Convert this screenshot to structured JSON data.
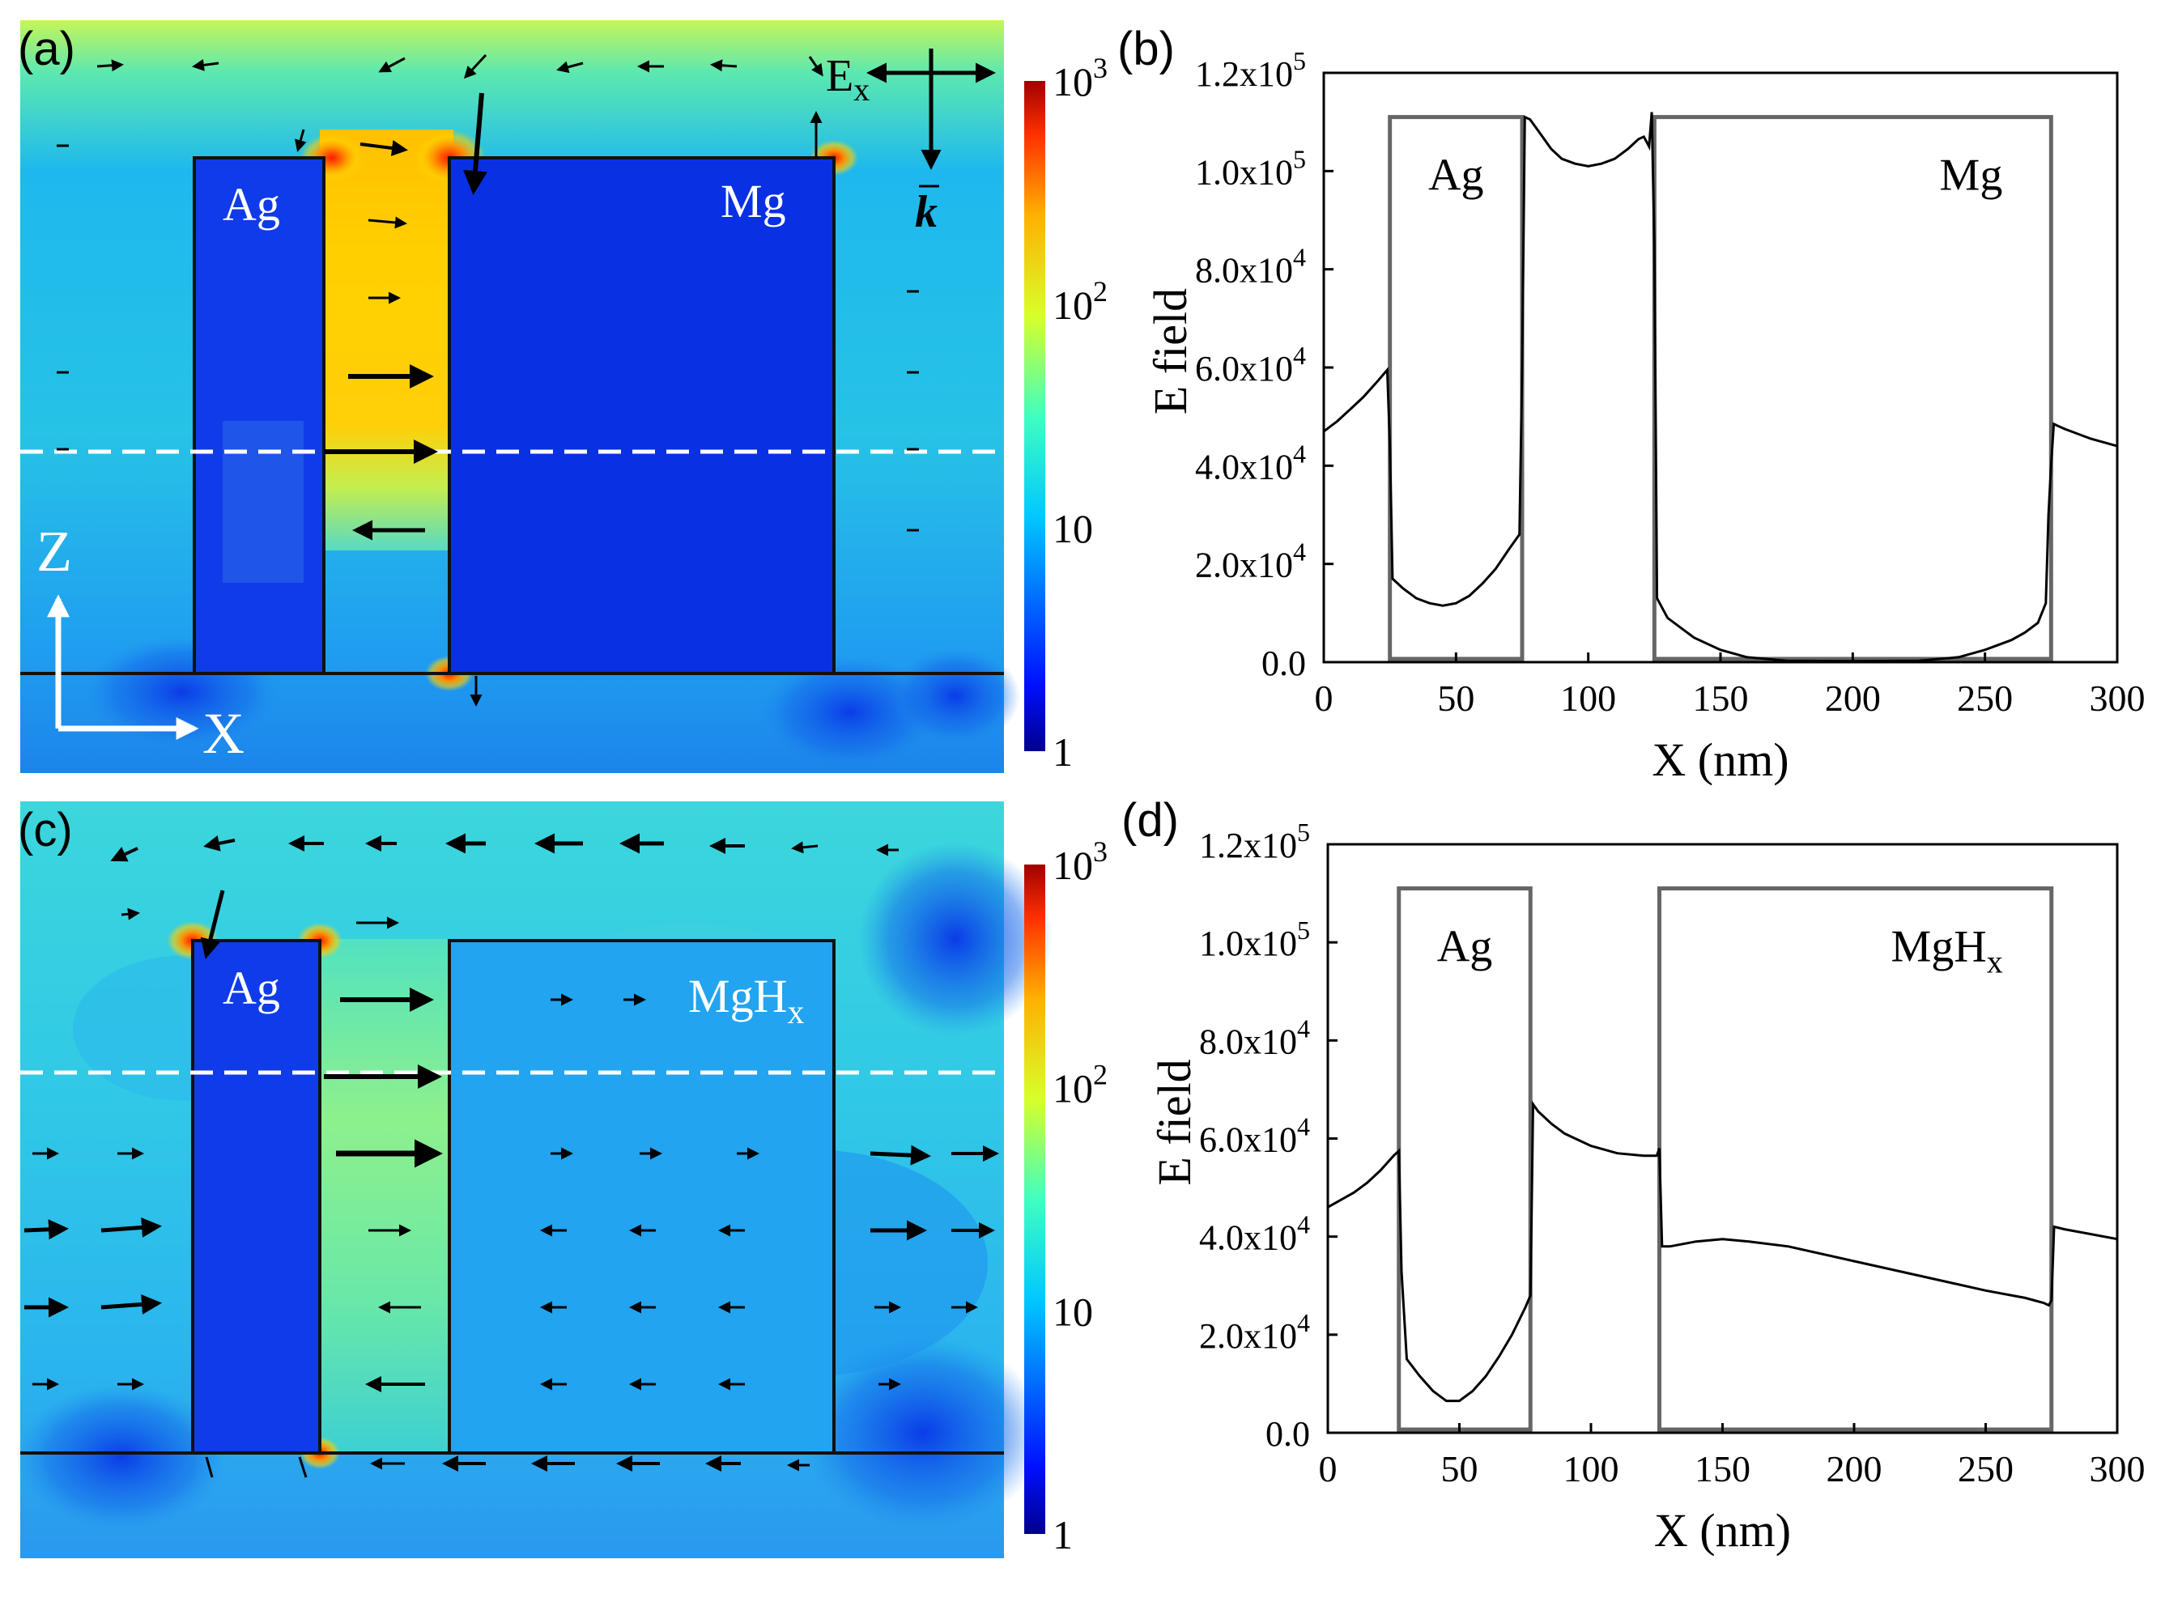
{
  "figure": {
    "panel_a": {
      "label": "(a)",
      "map_labels": {
        "left": "Ag",
        "right": "Mg"
      },
      "polarization": {
        "field_label": "E",
        "field_sub": "x",
        "wave_label": "k"
      },
      "axes": {
        "z": "Z",
        "x": "X"
      }
    },
    "panel_c": {
      "label": "(c)",
      "map_labels": {
        "left": "Ag",
        "right": "MgH",
        "right_sub": "x"
      }
    },
    "colorbar_top": {
      "scale": "log",
      "ticks": [
        {
          "base": "10",
          "exp": "3",
          "value": 1000
        },
        {
          "base": "10",
          "exp": "2",
          "value": 100
        },
        {
          "base": "10",
          "exp": "",
          "value": 10
        },
        {
          "base": "1",
          "exp": "",
          "value": 1
        }
      ]
    },
    "colorbar_bottom": {
      "scale": "log",
      "ticks": [
        {
          "base": "10",
          "exp": "3",
          "value": 1000
        },
        {
          "base": "10",
          "exp": "2",
          "value": 100
        },
        {
          "base": "10",
          "exp": "",
          "value": 10
        },
        {
          "base": "1",
          "exp": "",
          "value": 1
        }
      ]
    }
  },
  "chart_data": [
    {
      "id": "b",
      "panel_label": "(b)",
      "type": "line",
      "xlabel": "X (nm)",
      "ylabel": "E field",
      "xlim": [
        0,
        300
      ],
      "ylim": [
        0,
        120000
      ],
      "x_ticks": [
        "0",
        "50",
        "100",
        "150",
        "200",
        "250",
        "300"
      ],
      "y_ticks": [
        {
          "mant": "0.0",
          "exp": ""
        },
        {
          "mant": "2.0x10",
          "exp": "4"
        },
        {
          "mant": "4.0x10",
          "exp": "4"
        },
        {
          "mant": "6.0x10",
          "exp": "4"
        },
        {
          "mant": "8.0x10",
          "exp": "4"
        },
        {
          "mant": "1.0x10",
          "exp": "5"
        },
        {
          "mant": "1.2x10",
          "exp": "5"
        }
      ],
      "regions": [
        {
          "label": "Ag",
          "sub": "",
          "x_start": 25,
          "x_end": 75
        },
        {
          "label": "Mg",
          "sub": "",
          "x_start": 125,
          "x_end": 275
        }
      ],
      "series": [
        {
          "name": "E field",
          "x": [
            0,
            5,
            10,
            15,
            20,
            24,
            25,
            26,
            30,
            35,
            40,
            45,
            50,
            55,
            60,
            65,
            70,
            74,
            75,
            76,
            78,
            82,
            86,
            90,
            95,
            100,
            105,
            110,
            115,
            119,
            121,
            123,
            124,
            125,
            126,
            130,
            140,
            150,
            160,
            175,
            200,
            225,
            240,
            250,
            260,
            265,
            270,
            273,
            274,
            275,
            276,
            280,
            290,
            300
          ],
          "y": [
            47000,
            49000,
            51500,
            54000,
            57000,
            59500,
            44000,
            17000,
            15000,
            13000,
            12000,
            11500,
            12000,
            13500,
            16000,
            19000,
            23000,
            26000,
            60000,
            111000,
            110500,
            107500,
            104500,
            102500,
            101500,
            101000,
            101500,
            102500,
            104500,
            106500,
            107000,
            105000,
            112000,
            85000,
            13000,
            9000,
            5000,
            2500,
            1000,
            300,
            200,
            300,
            1000,
            2500,
            4500,
            6000,
            8000,
            12000,
            30000,
            40000,
            48500,
            47500,
            45500,
            44000
          ]
        }
      ]
    },
    {
      "id": "d",
      "panel_label": "(d)",
      "type": "line",
      "xlabel": "X (nm)",
      "ylabel": "E field",
      "xlim": [
        0,
        300
      ],
      "ylim": [
        0,
        120000
      ],
      "x_ticks": [
        "0",
        "50",
        "100",
        "150",
        "200",
        "250",
        "300"
      ],
      "y_ticks": [
        {
          "mant": "0.0",
          "exp": ""
        },
        {
          "mant": "2.0x10",
          "exp": "4"
        },
        {
          "mant": "4.0x10",
          "exp": "4"
        },
        {
          "mant": "6.0x10",
          "exp": "4"
        },
        {
          "mant": "8.0x10",
          "exp": "4"
        },
        {
          "mant": "1.0x10",
          "exp": "5"
        },
        {
          "mant": "1.2x10",
          "exp": "5"
        }
      ],
      "regions": [
        {
          "label": "Ag",
          "sub": "",
          "x_start": 27,
          "x_end": 77
        },
        {
          "label": "MgH",
          "sub": "x",
          "x_start": 126,
          "x_end": 275
        }
      ],
      "series": [
        {
          "name": "E field",
          "x": [
            0,
            5,
            10,
            15,
            20,
            25,
            27,
            28,
            30,
            35,
            40,
            45,
            50,
            55,
            60,
            65,
            70,
            75,
            77,
            78,
            80,
            85,
            90,
            100,
            110,
            120,
            125,
            126,
            127,
            130,
            140,
            150,
            160,
            175,
            200,
            225,
            250,
            265,
            272,
            274,
            275,
            276,
            280,
            290,
            300
          ],
          "y": [
            46000,
            47500,
            49000,
            51000,
            53500,
            56500,
            57500,
            33000,
            15000,
            11500,
            8500,
            6500,
            6500,
            8500,
            11500,
            15500,
            20000,
            25500,
            28000,
            67000,
            65500,
            63000,
            61000,
            58500,
            57000,
            56500,
            56500,
            58000,
            38000,
            38000,
            39000,
            39500,
            39000,
            38000,
            35000,
            32000,
            29000,
            27500,
            26500,
            26000,
            27000,
            42000,
            41500,
            40500,
            39500
          ]
        }
      ]
    }
  ]
}
